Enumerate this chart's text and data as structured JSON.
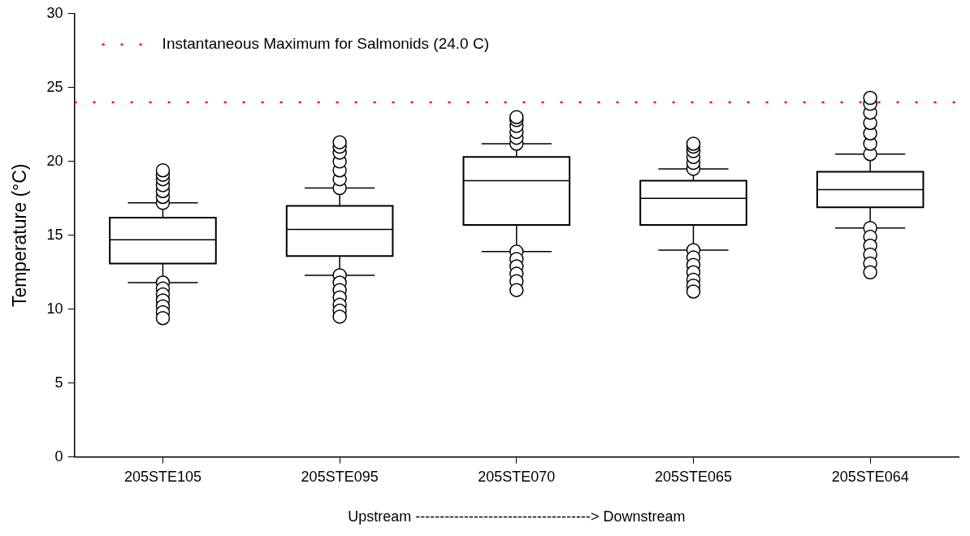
{
  "chart_data": {
    "type": "box",
    "ylabel": "Temperature (°C)",
    "xlabel": "Upstream ------------------------------------> Downstream",
    "categories": [
      "205STE105",
      "205STE095",
      "205STE070",
      "205STE065",
      "205STE064"
    ],
    "boxes": [
      {
        "low": 11.8,
        "q1": 13.1,
        "median": 14.7,
        "q3": 16.2,
        "high": 17.2,
        "outliers": [
          17.2,
          17.6,
          18.0,
          18.4,
          18.8,
          19.1,
          19.4,
          11.8,
          11.4,
          11.0,
          10.6,
          10.2,
          9.8,
          9.4
        ]
      },
      {
        "low": 12.3,
        "q1": 13.6,
        "median": 15.4,
        "q3": 17.0,
        "high": 18.2,
        "outliers": [
          18.2,
          18.8,
          19.4,
          20.0,
          20.6,
          21.0,
          21.3,
          12.3,
          11.8,
          11.3,
          10.8,
          10.3,
          9.9,
          9.5
        ]
      },
      {
        "low": 13.9,
        "q1": 15.7,
        "median": 18.7,
        "q3": 20.3,
        "high": 21.2,
        "outliers": [
          21.2,
          21.6,
          22.0,
          22.4,
          22.8,
          23.0,
          13.9,
          13.4,
          12.9,
          12.4,
          11.9,
          11.3
        ]
      },
      {
        "low": 14.0,
        "q1": 15.7,
        "median": 17.5,
        "q3": 18.7,
        "high": 19.5,
        "outliers": [
          19.5,
          19.9,
          20.3,
          20.7,
          21.0,
          21.2,
          14.0,
          13.5,
          13.0,
          12.5,
          12.0,
          11.6,
          11.2
        ]
      },
      {
        "low": 15.5,
        "q1": 16.9,
        "median": 18.1,
        "q3": 19.3,
        "high": 20.5,
        "outliers": [
          20.5,
          21.2,
          21.9,
          22.6,
          23.3,
          23.9,
          24.3,
          15.5,
          14.9,
          14.3,
          13.7,
          13.1,
          12.5
        ]
      }
    ],
    "ylim": [
      0,
      30
    ],
    "yticks": [
      0,
      5,
      10,
      15,
      20,
      25,
      30
    ],
    "grid": false,
    "marker": "circle",
    "ref_lines": [
      {
        "axis": "y",
        "value": 24.0,
        "label": "Instantaneous Maximum for Salmonids (24.0 C)",
        "color": "#ff0000",
        "line_style": "dotted"
      }
    ]
  }
}
